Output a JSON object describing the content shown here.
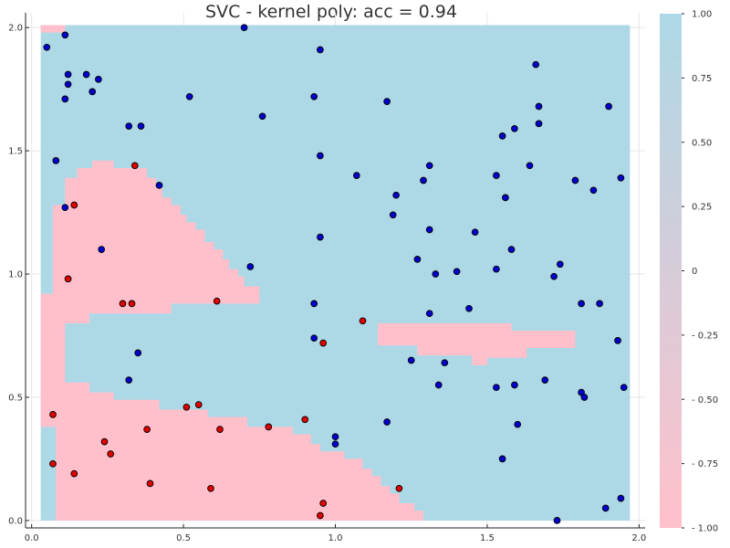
{
  "chart_data": {
    "type": "scatter",
    "title": "SVC - kernel poly: acc = 0.94",
    "xlim": [
      -0.02,
      2.02
    ],
    "ylim": [
      -0.03,
      2.06
    ],
    "xticks": [
      "0.0",
      "0.5",
      "1.0",
      "1.5",
      "2.0"
    ],
    "yticks": [
      "0.0",
      "0.5",
      "1.0",
      "1.5",
      "2.0"
    ],
    "grid": true,
    "colorbar": {
      "ticks": [
        "1.00",
        "0.75",
        "0.50",
        "0.25",
        "0",
        "- 0.25",
        "- 0.50",
        "- 0.75",
        "- 1.00"
      ],
      "range": [
        -1.0,
        1.0
      ],
      "low_color": "#ffc0cb",
      "high_color": "#add8e6"
    },
    "colors": {
      "class_pos": "#0000cd",
      "class_neg": "#e00000",
      "region_pos": "#add8e6",
      "region_neg": "#ffc0cb"
    },
    "decision_region": {
      "x_range": [
        0.03,
        1.97
      ],
      "y_range": [
        0.0,
        2.01
      ],
      "negative_polygons": [
        [
          [
            0.03,
            2.01
          ],
          [
            0.11,
            2.01
          ],
          [
            0.11,
            1.98
          ],
          [
            0.03,
            1.98
          ]
        ],
        [
          [
            0.07,
            1.28
          ],
          [
            0.11,
            1.28
          ],
          [
            0.11,
            1.39
          ],
          [
            0.15,
            1.39
          ],
          [
            0.15,
            1.43
          ],
          [
            0.2,
            1.43
          ],
          [
            0.2,
            1.46
          ],
          [
            0.27,
            1.46
          ],
          [
            0.27,
            1.43
          ],
          [
            0.38,
            1.43
          ],
          [
            0.38,
            1.39
          ],
          [
            0.41,
            1.39
          ],
          [
            0.41,
            1.35
          ],
          [
            0.43,
            1.35
          ],
          [
            0.43,
            1.31
          ],
          [
            0.46,
            1.31
          ],
          [
            0.46,
            1.28
          ],
          [
            0.49,
            1.28
          ],
          [
            0.49,
            1.24
          ],
          [
            0.51,
            1.24
          ],
          [
            0.51,
            1.21
          ],
          [
            0.54,
            1.21
          ],
          [
            0.54,
            1.18
          ],
          [
            0.57,
            1.18
          ],
          [
            0.57,
            1.13
          ],
          [
            0.6,
            1.13
          ],
          [
            0.6,
            1.1
          ],
          [
            0.63,
            1.1
          ],
          [
            0.63,
            1.06
          ],
          [
            0.65,
            1.06
          ],
          [
            0.65,
            1.02
          ],
          [
            0.68,
            1.02
          ],
          [
            0.68,
            0.99
          ],
          [
            0.7,
            0.99
          ],
          [
            0.7,
            0.95
          ],
          [
            0.75,
            0.95
          ],
          [
            0.75,
            0.88
          ],
          [
            0.46,
            0.88
          ],
          [
            0.46,
            0.84
          ],
          [
            0.19,
            0.84
          ],
          [
            0.19,
            0.8
          ],
          [
            0.11,
            0.8
          ],
          [
            0.11,
            0.77
          ],
          [
            0.07,
            0.77
          ]
        ],
        [
          [
            0.03,
            0.92
          ],
          [
            0.07,
            0.92
          ],
          [
            0.07,
            0.77
          ],
          [
            0.11,
            0.77
          ],
          [
            0.11,
            0.56
          ],
          [
            0.19,
            0.56
          ],
          [
            0.19,
            0.52
          ],
          [
            0.27,
            0.52
          ],
          [
            0.27,
            0.49
          ],
          [
            0.42,
            0.49
          ],
          [
            0.42,
            0.45
          ],
          [
            0.58,
            0.45
          ],
          [
            0.58,
            0.42
          ],
          [
            0.71,
            0.42
          ],
          [
            0.71,
            0.38
          ],
          [
            0.86,
            0.38
          ],
          [
            0.86,
            0.35
          ],
          [
            0.92,
            0.35
          ],
          [
            0.92,
            0.31
          ],
          [
            0.95,
            0.31
          ],
          [
            0.95,
            0.28
          ],
          [
            1.03,
            0.28
          ],
          [
            1.03,
            0.25
          ],
          [
            1.09,
            0.25
          ],
          [
            1.09,
            0.21
          ],
          [
            1.12,
            0.21
          ],
          [
            1.12,
            0.18
          ],
          [
            1.15,
            0.18
          ],
          [
            1.15,
            0.14
          ],
          [
            1.18,
            0.14
          ],
          [
            1.18,
            0.11
          ],
          [
            1.21,
            0.11
          ],
          [
            1.21,
            0.07
          ],
          [
            1.26,
            0.07
          ],
          [
            1.26,
            0.04
          ],
          [
            1.29,
            0.04
          ],
          [
            1.29,
            0.0
          ],
          [
            0.08,
            0.0
          ],
          [
            0.08,
            0.38
          ],
          [
            0.03,
            0.38
          ]
        ],
        [
          [
            1.14,
            0.8
          ],
          [
            1.58,
            0.8
          ],
          [
            1.58,
            0.77
          ],
          [
            1.79,
            0.77
          ],
          [
            1.79,
            0.7
          ],
          [
            1.63,
            0.7
          ],
          [
            1.63,
            0.66
          ],
          [
            1.5,
            0.66
          ],
          [
            1.5,
            0.63
          ],
          [
            1.45,
            0.63
          ],
          [
            1.45,
            0.67
          ],
          [
            1.27,
            0.67
          ],
          [
            1.27,
            0.71
          ],
          [
            1.14,
            0.71
          ]
        ]
      ]
    },
    "series": [
      {
        "name": "",
        "class": 1,
        "points": [
          [
            0.05,
            1.92
          ],
          [
            0.11,
            1.97
          ],
          [
            0.12,
            1.81
          ],
          [
            0.18,
            1.81
          ],
          [
            0.22,
            1.79
          ],
          [
            0.12,
            1.77
          ],
          [
            0.2,
            1.74
          ],
          [
            0.11,
            1.71
          ],
          [
            0.7,
            2.0
          ],
          [
            0.95,
            1.91
          ],
          [
            0.52,
            1.72
          ],
          [
            0.93,
            1.72
          ],
          [
            1.17,
            1.7
          ],
          [
            0.76,
            1.64
          ],
          [
            0.32,
            1.6
          ],
          [
            0.36,
            1.6
          ],
          [
            0.08,
            1.46
          ],
          [
            0.95,
            1.48
          ],
          [
            0.42,
            1.36
          ],
          [
            1.07,
            1.4
          ],
          [
            1.29,
            1.38
          ],
          [
            1.31,
            1.44
          ],
          [
            1.53,
            1.4
          ],
          [
            1.56,
            1.31
          ],
          [
            1.2,
            1.32
          ],
          [
            0.11,
            1.27
          ],
          [
            1.19,
            1.24
          ],
          [
            1.31,
            1.18
          ],
          [
            0.23,
            1.1
          ],
          [
            0.95,
            1.15
          ],
          [
            1.46,
            1.17
          ],
          [
            1.58,
            1.1
          ],
          [
            1.27,
            1.06
          ],
          [
            0.72,
            1.03
          ],
          [
            1.33,
            1.0
          ],
          [
            1.4,
            1.01
          ],
          [
            1.53,
            1.02
          ],
          [
            1.74,
            1.04
          ],
          [
            1.72,
            0.99
          ],
          [
            0.93,
            0.88
          ],
          [
            1.31,
            0.84
          ],
          [
            1.44,
            0.86
          ],
          [
            0.35,
            0.68
          ],
          [
            0.93,
            0.74
          ],
          [
            1.25,
            0.65
          ],
          [
            1.36,
            0.64
          ],
          [
            0.32,
            0.57
          ],
          [
            1.34,
            0.55
          ],
          [
            1.53,
            0.54
          ],
          [
            1.59,
            0.55
          ],
          [
            1.69,
            0.57
          ],
          [
            1.81,
            0.52
          ],
          [
            1.82,
            0.5
          ],
          [
            1.17,
            0.4
          ],
          [
            1.0,
            0.34
          ],
          [
            1.0,
            0.31
          ],
          [
            1.6,
            0.39
          ],
          [
            1.55,
            0.25
          ],
          [
            1.66,
            1.85
          ],
          [
            1.67,
            1.68
          ],
          [
            1.67,
            1.61
          ],
          [
            1.9,
            1.68
          ],
          [
            1.55,
            1.56
          ],
          [
            1.59,
            1.59
          ],
          [
            1.64,
            1.44
          ],
          [
            1.79,
            1.38
          ],
          [
            1.85,
            1.34
          ],
          [
            1.94,
            1.39
          ],
          [
            1.81,
            0.88
          ],
          [
            1.87,
            0.88
          ],
          [
            1.93,
            0.73
          ],
          [
            1.95,
            0.54
          ],
          [
            1.94,
            0.09
          ],
          [
            1.89,
            0.05
          ],
          [
            1.73,
            0.0
          ]
        ]
      },
      {
        "name": "",
        "class": -1,
        "points": [
          [
            0.34,
            1.44
          ],
          [
            0.14,
            1.28
          ],
          [
            0.12,
            0.98
          ],
          [
            0.3,
            0.88
          ],
          [
            0.33,
            0.88
          ],
          [
            0.61,
            0.89
          ],
          [
            1.09,
            0.81
          ],
          [
            0.96,
            0.72
          ],
          [
            0.07,
            0.43
          ],
          [
            0.38,
            0.37
          ],
          [
            0.51,
            0.46
          ],
          [
            0.55,
            0.47
          ],
          [
            0.62,
            0.37
          ],
          [
            0.78,
            0.38
          ],
          [
            0.9,
            0.41
          ],
          [
            0.24,
            0.32
          ],
          [
            0.26,
            0.27
          ],
          [
            0.07,
            0.23
          ],
          [
            0.14,
            0.19
          ],
          [
            0.39,
            0.15
          ],
          [
            0.59,
            0.13
          ],
          [
            0.96,
            0.07
          ],
          [
            0.95,
            0.02
          ],
          [
            1.21,
            0.13
          ]
        ]
      }
    ]
  }
}
